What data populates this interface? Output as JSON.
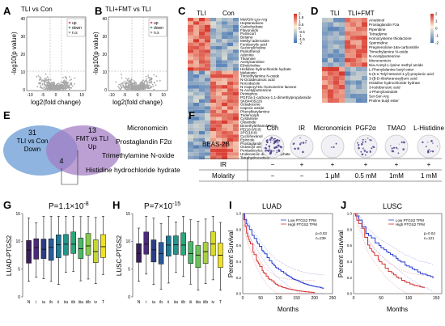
{
  "panels": {
    "A": {
      "letter": "A",
      "title": "TLI vs Con",
      "xlabel": "log2(fold change)",
      "ylabel": "-log10(p value)",
      "legend": [
        "up",
        "down",
        "n.s"
      ],
      "xticks": [
        "-10",
        "-5",
        "0",
        "5",
        "10"
      ],
      "yticks": [
        "0",
        "10",
        "20",
        "30",
        "40"
      ],
      "colors": {
        "up": "#e0567a",
        "down": "#3fbf6f",
        "ns": "#a8a8a8"
      }
    },
    "B": {
      "letter": "B",
      "title": "TLI+FMT vs TLI",
      "xlabel": "log2(fold change)",
      "ylabel": "-log10(p value)",
      "legend": [
        "up",
        "down",
        "n.s"
      ],
      "xticks": [
        "-10",
        "-5",
        "0",
        "5",
        "10"
      ],
      "yticks": [
        "0",
        "10",
        "20",
        "30",
        "40"
      ]
    },
    "C": {
      "letter": "C",
      "groups": [
        "TLI",
        "Con"
      ],
      "colorbar": [
        "2",
        "1.5",
        "1",
        "0.5",
        "0",
        "-0.5",
        "-1",
        "-1.5",
        "-2"
      ],
      "rows": [
        "Met/Gln-Lys-Arg",
        "Heptanedione",
        "Carbohydrate",
        "Flavonoids",
        "Pulmicort",
        "Betaine",
        "Methyl adenosine",
        "Furylacrylic acid",
        "Succinylcholine",
        "Pantothenol",
        "Adenine",
        "Thiamine",
        "Acetylcarnitine",
        "Ethylcholine",
        "Histidine hydrochloride hydrate",
        "Melatonin",
        "Trimethylamine N-oxide",
        "N-Octadecanoic acid",
        "Nocodazole",
        "N-Caproyl-DL-homoserine lactone",
        "N-Acetylputrescine",
        "Pirimiphos",
        "PGF2a-1-carboxy-1,1-dimethylpropylamide",
        "SKB4435226",
        "Octadecene",
        "Caproic amide",
        "Phenylbutylamine",
        "Tridemorph",
        "Cystamine",
        "Oleamide",
        "Dimethylethanolamine",
        "PE(18:0/0:0)",
        "2PC(18:0)",
        "Cyclohexanol",
        "Epirizole",
        "Prostaglandin F2a",
        "Octanoyl urea",
        "Pentadecylcarbonic acid",
        "Undecanoic dihydrophosphate",
        "Tetrahydrocortisol"
      ]
    },
    "D": {
      "letter": "D",
      "groups": [
        "TLI",
        "TLI+FMT"
      ],
      "colorbar": [
        "2",
        "1",
        "0",
        "-1",
        "-2"
      ],
      "rows": [
        "Amebinol",
        "Prostaglandin F2a",
        "Piperidine",
        "Tetraglyme",
        "Homocysteine thiolactone",
        "Spermidine",
        "Pregnenolone-16a-carbonitrile",
        "Trimethylamine N-oxide",
        "N-Acetylputrescine",
        "Micronomicin",
        "Nia-Acetyl-L-lysine methyl amide",
        "L-Phenylalanine butyl ester",
        "5-(5-n-Tolyl-tetrazol-1-yl)-propionic acid",
        "3-(β-D-ribofuranosyl)uric acid",
        "Histidine hydrochloride hydrate",
        "3-Iodobenzoic acid",
        "1-Phenyloxindole",
        "Ser-Ser-Arg",
        "Proline butyl ester"
      ]
    },
    "E": {
      "letter": "E",
      "left": {
        "count": "31",
        "label1": "TLI vs Con",
        "label2": "Down"
      },
      "right": {
        "count": "13",
        "label1": "FMT vs TLI",
        "label2": "Up"
      },
      "overlap": "4",
      "items": [
        "Micronomicin",
        "Prostaglandin F2α",
        "Trimethylamine N-oxide",
        "Histidine hydrochloride hydrate"
      ]
    },
    "F": {
      "letter": "F",
      "cell_line": "BEAS-2B",
      "columns": [
        "Con",
        "IR",
        "Micronomicin",
        "PGF2α",
        "TMAO",
        "L-Histidine"
      ],
      "colony_density": [
        0.9,
        0.2,
        0.05,
        0.45,
        0.2,
        0.18
      ],
      "row_labels": [
        "IR",
        "Molarity"
      ],
      "ir": [
        "−",
        "+",
        "+",
        "+",
        "+",
        "+"
      ],
      "molarity": [
        "−",
        "−",
        "1 μM",
        "0.5 mM",
        "1mM",
        "1 mM"
      ]
    },
    "G": {
      "letter": "G",
      "pvalue": "P=1.1×10",
      "pexp": "-8",
      "ylabel": "LUAD-PTGS2",
      "yticks": [
        "0",
        "5",
        "10",
        "15"
      ],
      "categories": [
        "N",
        "i",
        "ia",
        "ib",
        "ii",
        "iia",
        "iib",
        "iiia",
        "iiib",
        "iv",
        "T"
      ],
      "colors": [
        "#3a1f5c",
        "#4a2a7a",
        "#2c3d88",
        "#2a5a9a",
        "#1f7a96",
        "#20958a",
        "#2aa87a",
        "#4cb868",
        "#88c94a",
        "#c3d834",
        "#eee12a"
      ]
    },
    "H": {
      "letter": "H",
      "pvalue": "P=7×10",
      "pexp": "-15",
      "ylabel": "LUSC-PTGS2",
      "yticks": [
        "0",
        "5",
        "10",
        "15"
      ],
      "categories": [
        "N",
        "i",
        "ia",
        "ib",
        "ii",
        "iia",
        "iib",
        "iii",
        "iiia",
        "iiib",
        "iv",
        "T"
      ],
      "colors": [
        "#3a1f5c",
        "#4a2a7a",
        "#2c3d88",
        "#2a5a9a",
        "#1f7a96",
        "#20958a",
        "#2aa87a",
        "#4cb868",
        "#6ec45a",
        "#a9d13e",
        "#d7dc2e",
        "#eee12a"
      ]
    },
    "I": {
      "letter": "I",
      "title": "LUAD",
      "xlabel": "Months",
      "ylabel": "Percent Survival",
      "xticks": [
        "0",
        "50",
        "100",
        "150",
        "200",
        "250"
      ],
      "yticks": [
        "0.0",
        "0.2",
        "0.4",
        "0.6",
        "0.8",
        "1.0"
      ],
      "legend": [
        "Low PTGS2 TPM",
        "High PTGS2 TPM"
      ],
      "stats": [
        "p=0.03",
        "n=239"
      ],
      "colors": {
        "low": "#2b3fd1",
        "high": "#d63232"
      }
    },
    "J": {
      "letter": "J",
      "title": "LUSC",
      "xlabel": "Months",
      "ylabel": "Percent Survival",
      "xticks": [
        "0",
        "50",
        "100",
        "150"
      ],
      "yticks": [
        "0.0",
        "0.2",
        "0.4",
        "0.6",
        "0.8",
        "1.0"
      ],
      "legend": [
        "Low PTGS2 TPM",
        "High PTGS2 TPM"
      ],
      "stats": [
        "p=0.04",
        "n=121"
      ],
      "colors": {
        "low": "#2b3fd1",
        "high": "#d63232"
      }
    }
  }
}
